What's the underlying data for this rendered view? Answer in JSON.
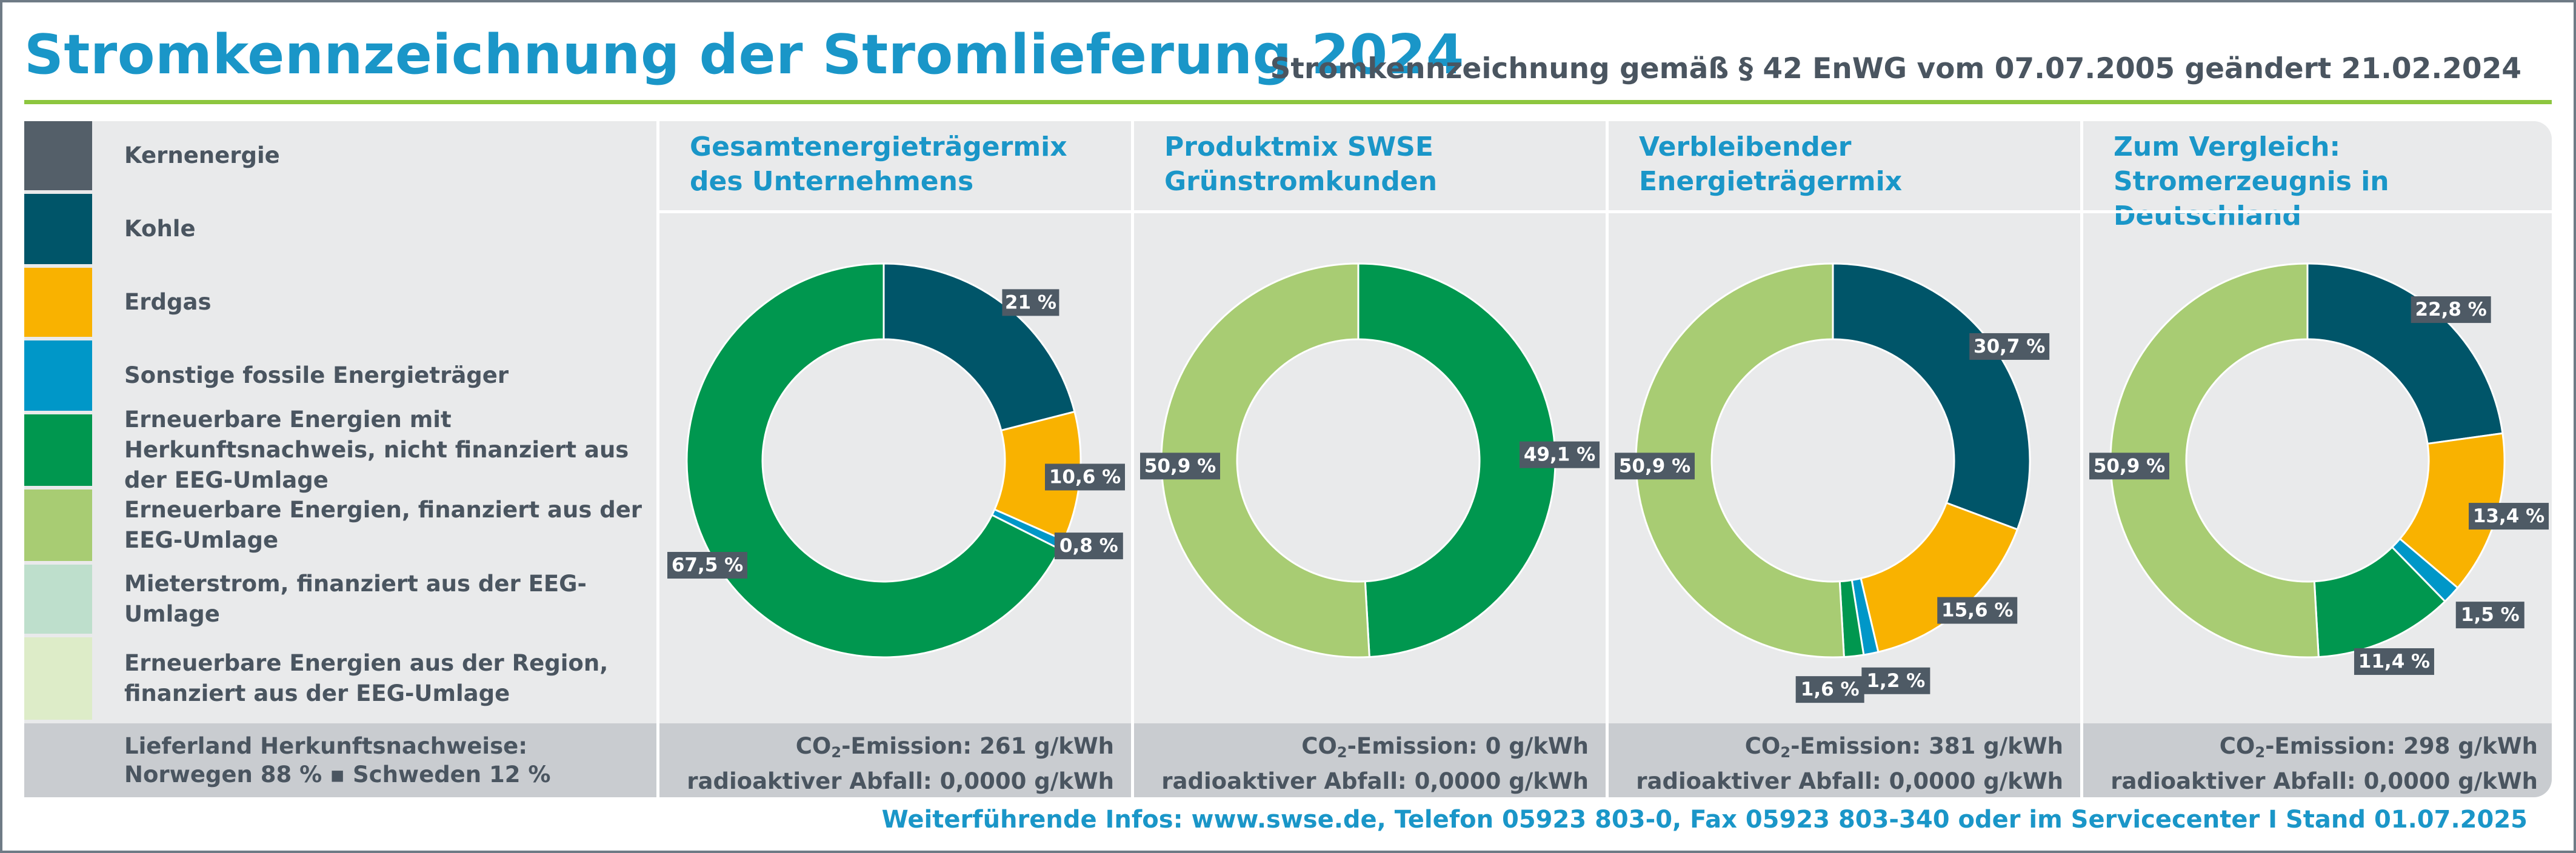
{
  "header": {
    "title": "Stromkennzeichnung der Stromlieferung 2024",
    "subtitle": "Stromkennzeichnung gemäß § 42 EnWG vom 07.07.2005 geändert 21.02.2024"
  },
  "legend": [
    {
      "label": "Kernenergie",
      "color": "#545f69"
    },
    {
      "label": "Kohle",
      "color": "#005569"
    },
    {
      "label": "Erdgas",
      "color": "#f9b200"
    },
    {
      "label": "Sonstige fossile Energieträger",
      "color": "#0097c8"
    },
    {
      "label": "Erneuerbare Energien mit Herkunftsnachweis, nicht finanziert aus der EEG-Umlage",
      "color": "#00974f"
    },
    {
      "label": "Erneuerbare Energien, finanziert aus der EEG-Umlage",
      "color": "#a8cc73"
    },
    {
      "label": "Mieterstrom, finanziert aus der EEG-Umlage",
      "color": "#bedfcc"
    },
    {
      "label": "Erneuerbare Energien aus der Region, finanziert aus der EEG-Umlage",
      "color": "#ddecc8"
    }
  ],
  "herkunft": {
    "line1": "Lieferland Herkunftsnachweise:",
    "line2": "Norwegen 88 % ▪ Schweden 12 %"
  },
  "chart_data": [
    {
      "type": "pie",
      "title": "Gesamtenergieträgermix des Unternehmens",
      "slices": [
        {
          "category": "Kohle",
          "value": 21.0,
          "label": "21 %"
        },
        {
          "category": "Erdgas",
          "value": 10.6,
          "label": "10,6 %"
        },
        {
          "category": "Sonstige fossile Energieträger",
          "value": 0.8,
          "label": "0,8 %"
        },
        {
          "category": "Erneuerbare Energien mit Herkunftsnachweis, nicht finanziert aus der EEG-Umlage",
          "value": 67.5,
          "label": "67,5 %"
        }
      ],
      "co2_label": "-Emission: 261 g/kWh",
      "waste_label": "radioaktiver Abfall: 0,0000 g/kWh"
    },
    {
      "type": "pie",
      "title": "Produktmix SWSE Grünstromkunden",
      "slices": [
        {
          "category": "Erneuerbare Energien mit Herkunftsnachweis, nicht finanziert aus der EEG-Umlage",
          "value": 49.1,
          "label": "49,1 %"
        },
        {
          "category": "Erneuerbare Energien, finanziert aus der EEG-Umlage",
          "value": 50.9,
          "label": "50,9 %"
        }
      ],
      "co2_label": "-Emission: 0 g/kWh",
      "waste_label": "radioaktiver Abfall: 0,0000 g/kWh"
    },
    {
      "type": "pie",
      "title": "Verbleibender Energieträgermix",
      "slices": [
        {
          "category": "Kohle",
          "value": 30.7,
          "label": "30,7 %"
        },
        {
          "category": "Erdgas",
          "value": 15.6,
          "label": "15,6 %"
        },
        {
          "category": "Sonstige fossile Energieträger",
          "value": 1.2,
          "label": "1,2 %"
        },
        {
          "category": "Erneuerbare Energien mit Herkunftsnachweis, nicht finanziert aus der EEG-Umlage",
          "value": 1.6,
          "label": "1,6 %"
        },
        {
          "category": "Erneuerbare Energien, finanziert aus der EEG-Umlage",
          "value": 50.9,
          "label": "50,9 %"
        }
      ],
      "co2_label": "-Emission: 381 g/kWh",
      "waste_label": "radioaktiver Abfall: 0,0000 g/kWh"
    },
    {
      "type": "pie",
      "title": "Zum Vergleich: Stromerzeugnis in Deutschland",
      "slices": [
        {
          "category": "Kohle",
          "value": 22.8,
          "label": "22,8 %"
        },
        {
          "category": "Erdgas",
          "value": 13.4,
          "label": "13,4 %"
        },
        {
          "category": "Sonstige fossile Energieträger",
          "value": 1.5,
          "label": "1,5 %"
        },
        {
          "category": "Erneuerbare Energien mit Herkunftsnachweis, nicht finanziert aus der EEG-Umlage",
          "value": 11.4,
          "label": "11,4 %"
        },
        {
          "category": "Erneuerbare Energien, finanziert aus der EEG-Umlage",
          "value": 50.9,
          "label": "50,9 %"
        }
      ],
      "co2_label": "-Emission: 298 g/kWh",
      "waste_label": "radioaktiver Abfall: 0,0000 g/kWh"
    }
  ],
  "co2_prefix": "CO",
  "co2_sub": "2",
  "footer": {
    "info": "Weiterführende Infos: www.swse.de, Telefon 05923 803-0, Fax 05923 803-340 oder im Servicecenter I Stand 01.07.2025"
  }
}
